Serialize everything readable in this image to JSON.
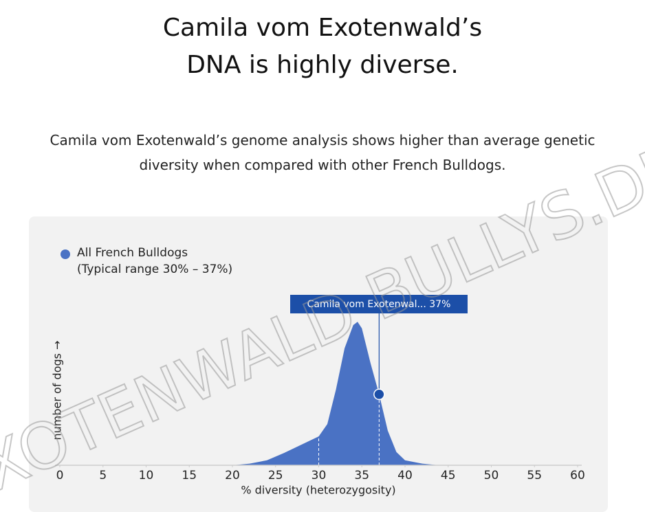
{
  "chart_data": {
    "type": "area",
    "title": "Camila vom Exotenwald’s DNA is highly diverse.",
    "subtitle": "Camila vom Exotenwald’s genome analysis shows higher than average genetic diversity when compared with other French Bulldogs.",
    "x_label": "% diversity (heterozygosity)",
    "y_label": "number of dogs →",
    "xlim": [
      0,
      60
    ],
    "xticks": [
      0,
      5,
      10,
      15,
      20,
      25,
      30,
      35,
      40,
      45,
      50,
      55,
      60
    ],
    "ylim": [
      0,
      100
    ],
    "series": [
      {
        "name": "All French Bulldogs",
        "color": "#4a72c4",
        "x": [
          0,
          20,
          22,
          24,
          26,
          28,
          30,
          31,
          32,
          33,
          34,
          34.5,
          35,
          36,
          37,
          38,
          39,
          40,
          42,
          44,
          60
        ],
        "values": [
          0,
          0,
          1,
          3,
          7.5,
          12.5,
          17.5,
          25,
          46,
          71,
          85,
          87,
          83,
          62,
          43,
          21,
          8,
          3,
          1,
          0,
          0
        ]
      }
    ],
    "legend_note": "(Typical range 30% – 37%)",
    "typical_range": [
      30,
      37
    ],
    "marker": {
      "x": 37,
      "y": 43,
      "label": "Camila vom Exotenwal... 37%",
      "color": "#1c4fa8"
    },
    "watermark": "EXOTENWALD BULLYS.DE"
  }
}
